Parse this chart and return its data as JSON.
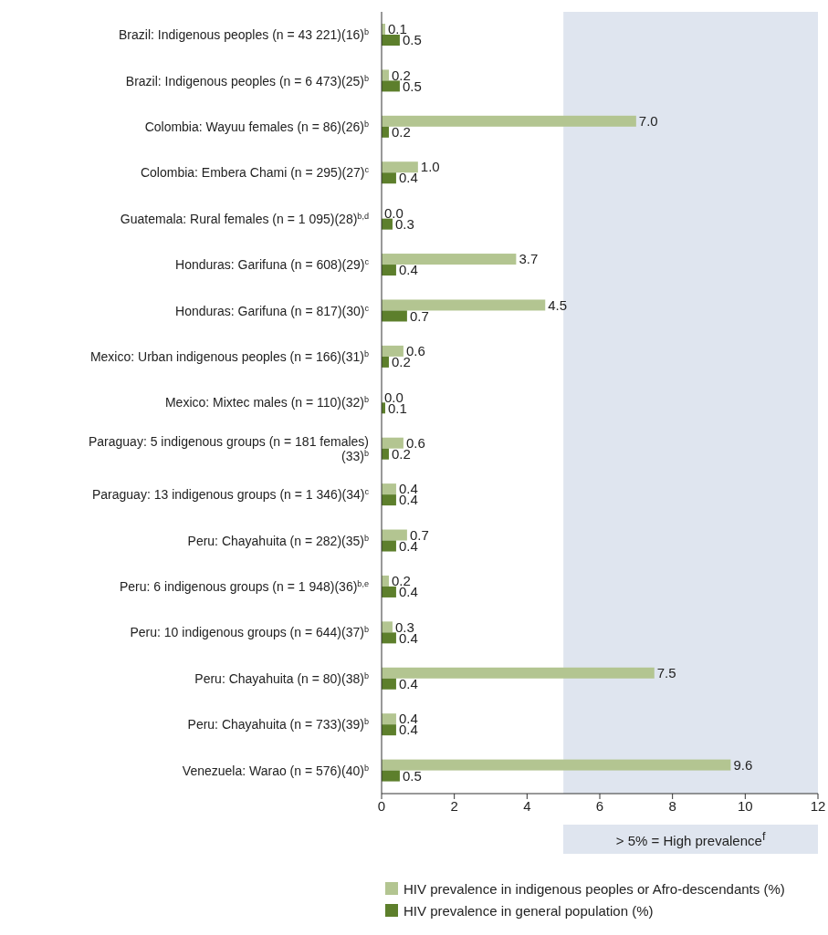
{
  "chart_data": {
    "type": "bar",
    "orientation": "horizontal",
    "categories": [
      "Brazil: Indigenous peoples (n = 43 221)(16)$^{b}$",
      "Brazil: Indigenous peoples (n = 6 473)(25)$^{b}$",
      "Colombia: Wayuu females (n = 86)(26)$^{b}$",
      "Colombia: Embera Chami (n = 295)(27)$^{c}$",
      "Guatemala: Rural females (n = 1 095)(28)$^{b,d}$",
      "Honduras: Garifuna (n = 608)(29)$^{c}$",
      "Honduras: Garifuna (n = 817)(30)$^{c}$",
      "Mexico: Urban indigenous peoples (n = 166)(31)$^{b}$",
      "Mexico: Mixtec males (n = 110)(32)$^{b}$",
      "Paraguay: 5 indigenous groups (n = 181 females)(33)$^{b}$",
      "Paraguay: 13 indigenous groups (n = 1 346)(34)$^{c}$",
      "Peru: Chayahuita (n = 282)(35)$^{b}$",
      "Peru: 6 indigenous groups (n = 1 948)(36)$^{b,e}$",
      "Peru: 10 indigenous groups (n = 644)(37)$^{b}$",
      "Peru: Chayahuita (n = 80)(38)$^{b}$",
      "Peru: Chayahuita (n = 733)(39)$^{b}$",
      "Venezuela: Warao (n = 576)(40)$^{b}$"
    ],
    "series": [
      {
        "name": "HIV prevalence in indigenous peoples or Afro-descendants (%)",
        "color": "#b3c591",
        "values": [
          0.1,
          0.2,
          7.0,
          1.0,
          0.0,
          3.7,
          4.5,
          0.6,
          0.0,
          0.6,
          0.4,
          0.7,
          0.2,
          0.3,
          7.5,
          0.4,
          9.6
        ],
        "value_labels": [
          "0.1",
          "0.2",
          "7.0",
          "1.0",
          "0.0",
          "3.7",
          "4.5",
          "0.6",
          "0.0",
          "0.6",
          "0.4",
          "0.7",
          "0.2",
          "0.3",
          "7.5",
          "0.4",
          "9.6"
        ]
      },
      {
        "name": "HIV prevalence in general population (%)",
        "color": "#5d7f2c",
        "values": [
          0.5,
          0.5,
          0.2,
          0.4,
          0.3,
          0.4,
          0.7,
          0.2,
          0.1,
          0.2,
          0.4,
          0.4,
          0.4,
          0.4,
          0.4,
          0.4,
          0.5
        ],
        "value_labels": [
          "0.5",
          "0.5",
          "0.2",
          "0.4",
          "0.3",
          "0.4",
          "0.7",
          "0.2",
          "0.1",
          "0.2",
          "0.4",
          "0.4",
          "0.4",
          "0.4",
          "0.4",
          "0.4",
          "0.5"
        ]
      }
    ],
    "xlim": [
      0,
      12
    ],
    "xticks": [
      0,
      2,
      4,
      6,
      8,
      10,
      12
    ],
    "bands": [
      {
        "axis": "x",
        "from": 5,
        "to": 12,
        "label": "> 5% = High prevalence$^{f}$",
        "color": "#dfe5ef"
      }
    ],
    "grid": false,
    "legend": "bottom"
  }
}
